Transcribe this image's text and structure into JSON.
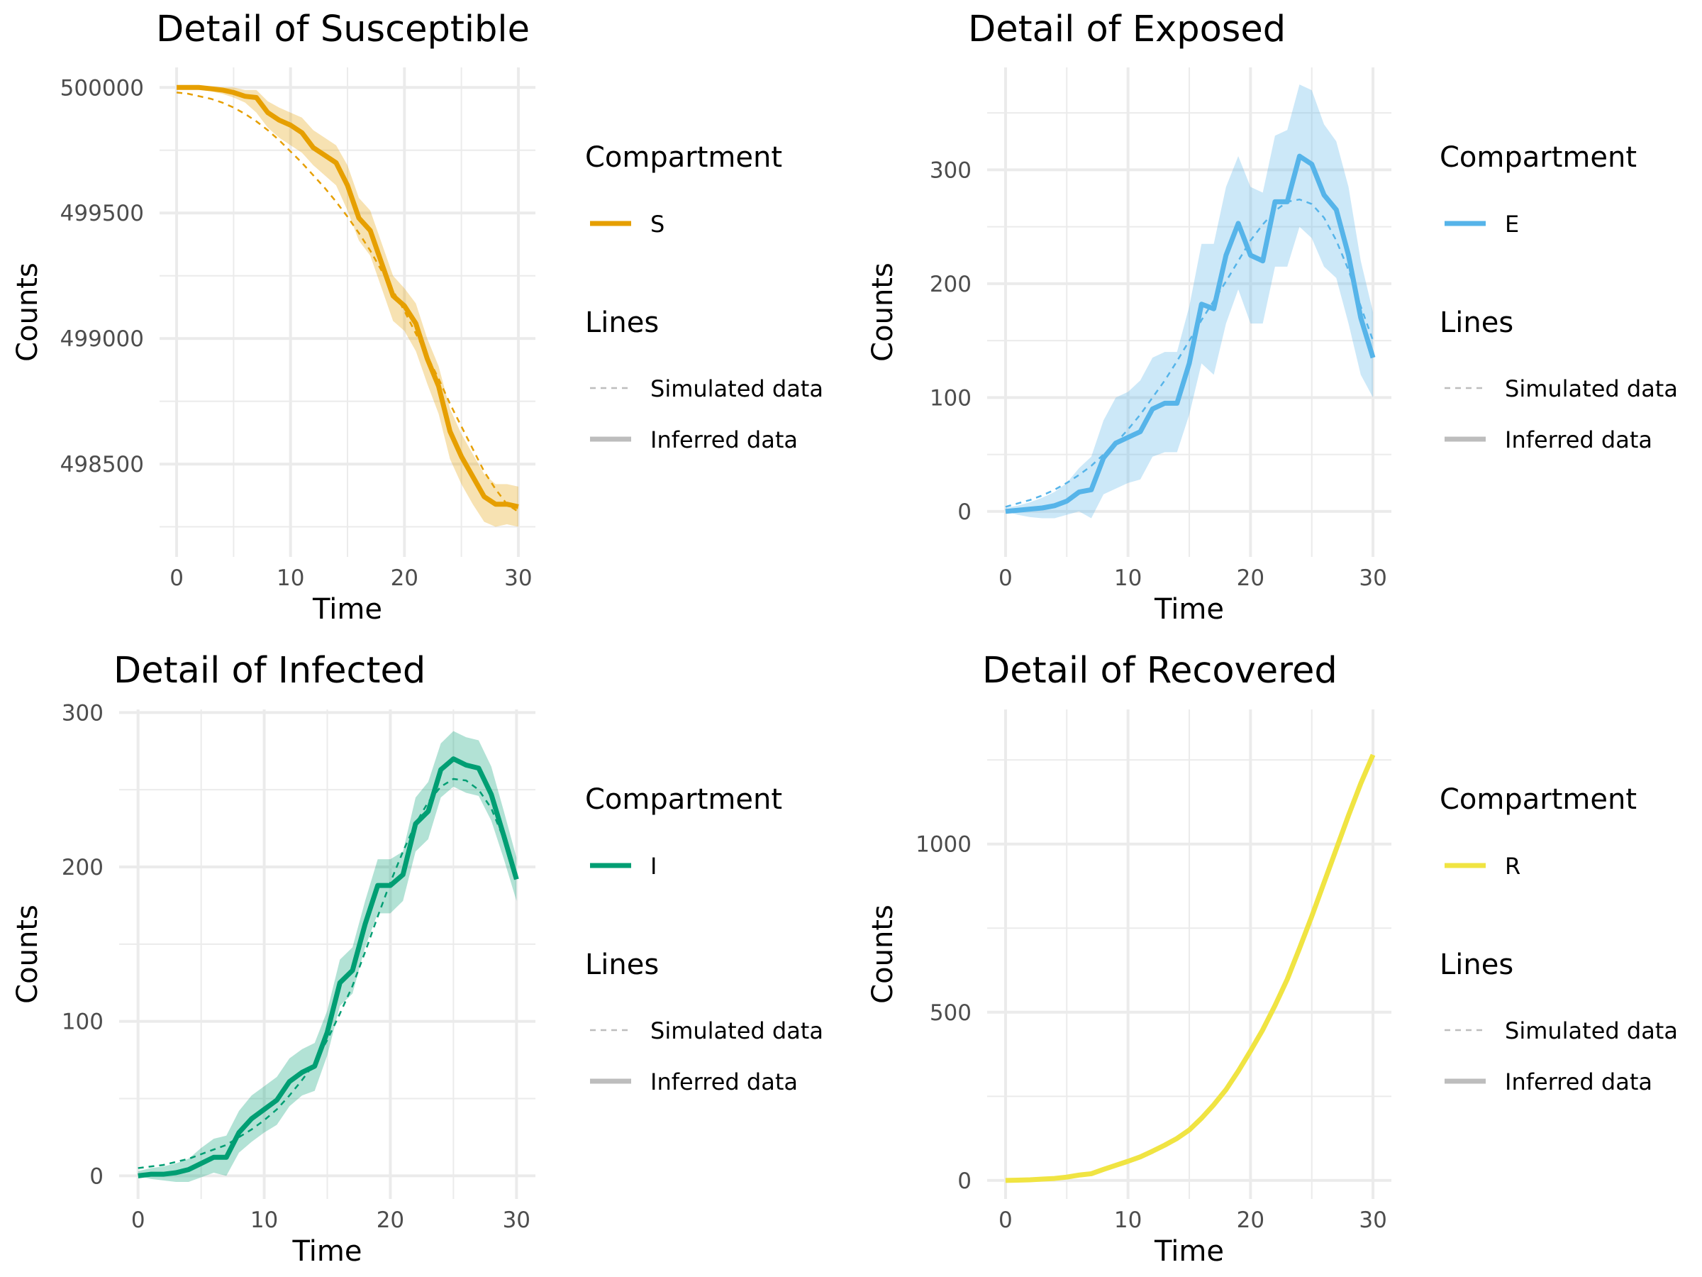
{
  "line_types": {
    "simulated_label": "Simulated data",
    "inferred_label": "Inferred data"
  },
  "chart_data": [
    {
      "type": "line",
      "title": "Detail of Susceptible",
      "xlabel": "Time",
      "ylabel": "Counts",
      "xlim": [
        -1.5,
        31.5
      ],
      "ylim": [
        498130,
        500080
      ],
      "xticks": [
        0,
        10,
        20,
        30
      ],
      "yticks": [
        498500,
        499000,
        499500,
        500000
      ],
      "yminor": [
        498250,
        498750,
        499250,
        499750
      ],
      "xminor": [
        5,
        15,
        25
      ],
      "color": "#E69F00",
      "band_opacity": 0.3,
      "grid": true,
      "legend_position": "right",
      "legend": {
        "compartment_title": "Compartment",
        "compartment_label": "S",
        "lines_title": "Lines"
      },
      "x": [
        0,
        1,
        2,
        3,
        4,
        5,
        6,
        7,
        8,
        9,
        10,
        11,
        12,
        13,
        14,
        15,
        16,
        17,
        18,
        19,
        20,
        21,
        22,
        23,
        24,
        25,
        26,
        27,
        28,
        29,
        30
      ],
      "series": [
        {
          "name": "Inferred data",
          "style": "solid",
          "values": [
            500000,
            500000,
            500000,
            499995,
            499990,
            499980,
            499965,
            499960,
            499900,
            499870,
            499850,
            499820,
            499760,
            499730,
            499700,
            499610,
            499480,
            499430,
            499300,
            499170,
            499130,
            499060,
            498920,
            498810,
            498630,
            498530,
            498450,
            498370,
            498340,
            498340,
            498330
          ],
          "lower": [
            499995,
            499995,
            499990,
            499985,
            499975,
            499960,
            499940,
            499900,
            499840,
            499800,
            499770,
            499740,
            499690,
            499650,
            499610,
            499510,
            499390,
            499330,
            499200,
            499070,
            499030,
            498950,
            498820,
            498700,
            498520,
            498420,
            498340,
            498270,
            498250,
            498260,
            498250
          ],
          "upper": [
            500000,
            500000,
            500000,
            500000,
            500000,
            500000,
            499990,
            499990,
            499945,
            499920,
            499900,
            499880,
            499830,
            499800,
            499770,
            499690,
            499560,
            499510,
            499380,
            499250,
            499200,
            499140,
            499000,
            498890,
            498720,
            498620,
            498540,
            498460,
            498420,
            498420,
            498410
          ]
        },
        {
          "name": "Simulated data",
          "style": "dashed",
          "values": [
            499980,
            499975,
            499965,
            499955,
            499940,
            499920,
            499895,
            499865,
            499830,
            499790,
            499745,
            499700,
            499650,
            499600,
            499545,
            499485,
            499420,
            499350,
            499270,
            499190,
            499110,
            499020,
            498930,
            498840,
            498740,
            498650,
            498560,
            498470,
            498400,
            498340,
            498310
          ]
        }
      ]
    },
    {
      "type": "line",
      "title": "Detail of Exposed",
      "xlabel": "Time",
      "ylabel": "Counts",
      "xlim": [
        -1.5,
        31.5
      ],
      "ylim": [
        -40,
        390
      ],
      "xticks": [
        0,
        10,
        20,
        30
      ],
      "yticks": [
        0,
        100,
        200,
        300
      ],
      "yminor": [
        50,
        150,
        250,
        350
      ],
      "xminor": [
        5,
        15,
        25
      ],
      "color": "#56B4E9",
      "band_opacity": 0.3,
      "grid": true,
      "legend_position": "right",
      "legend": {
        "compartment_title": "Compartment",
        "compartment_label": "E",
        "lines_title": "Lines"
      },
      "x": [
        0,
        1,
        2,
        3,
        4,
        5,
        6,
        7,
        8,
        9,
        10,
        11,
        12,
        13,
        14,
        15,
        16,
        17,
        18,
        19,
        20,
        21,
        22,
        23,
        24,
        25,
        26,
        27,
        28,
        29,
        30
      ],
      "series": [
        {
          "name": "Inferred data",
          "style": "solid",
          "values": [
            0,
            1,
            2,
            3,
            5,
            9,
            17,
            19,
            47,
            60,
            65,
            70,
            90,
            95,
            95,
            130,
            182,
            178,
            225,
            253,
            225,
            220,
            272,
            272,
            312,
            305,
            278,
            265,
            225,
            170,
            135
          ],
          "lower": [
            0,
            -3,
            -5,
            -6,
            -6,
            -3,
            0,
            -6,
            15,
            20,
            25,
            28,
            48,
            52,
            52,
            85,
            130,
            120,
            165,
            195,
            165,
            165,
            215,
            215,
            250,
            240,
            215,
            205,
            165,
            120,
            100
          ],
          "upper": [
            3,
            5,
            8,
            12,
            17,
            25,
            38,
            48,
            80,
            100,
            105,
            115,
            135,
            140,
            140,
            180,
            235,
            235,
            285,
            312,
            285,
            280,
            330,
            335,
            375,
            370,
            340,
            325,
            285,
            220,
            175
          ]
        },
        {
          "name": "Simulated data",
          "style": "dashed",
          "values": [
            4,
            7,
            10,
            14,
            19,
            25,
            32,
            40,
            50,
            60,
            72,
            85,
            100,
            115,
            132,
            150,
            168,
            185,
            202,
            220,
            238,
            252,
            264,
            272,
            274,
            270,
            258,
            238,
            212,
            180,
            150
          ]
        }
      ]
    },
    {
      "type": "line",
      "title": "Detail of Infected",
      "xlabel": "Time",
      "ylabel": "Counts",
      "xlim": [
        -1.5,
        31.5
      ],
      "ylim": [
        -15,
        302
      ],
      "xticks": [
        0,
        10,
        20,
        30
      ],
      "yticks": [
        0,
        100,
        200,
        300
      ],
      "yminor": [
        50,
        150,
        250
      ],
      "xminor": [
        5,
        15,
        25
      ],
      "color": "#009E73",
      "band_opacity": 0.3,
      "grid": true,
      "legend_position": "right",
      "legend": {
        "compartment_title": "Compartment",
        "compartment_label": "I",
        "lines_title": "Lines"
      },
      "x": [
        0,
        1,
        2,
        3,
        4,
        5,
        6,
        7,
        8,
        9,
        10,
        11,
        12,
        13,
        14,
        15,
        16,
        17,
        18,
        19,
        20,
        21,
        22,
        23,
        24,
        25,
        26,
        27,
        28,
        29,
        30
      ],
      "series": [
        {
          "name": "Inferred data",
          "style": "solid",
          "values": [
            0,
            1,
            1,
            2,
            4,
            8,
            12,
            12,
            28,
            37,
            43,
            49,
            61,
            67,
            71,
            93,
            125,
            133,
            163,
            188,
            188,
            195,
            228,
            236,
            263,
            270,
            266,
            264,
            247,
            220,
            192
          ],
          "lower": [
            0,
            -2,
            -3,
            -4,
            -4,
            -1,
            2,
            0,
            15,
            22,
            28,
            33,
            45,
            52,
            55,
            78,
            110,
            118,
            148,
            170,
            170,
            178,
            210,
            218,
            245,
            252,
            248,
            246,
            230,
            205,
            178
          ],
          "upper": [
            3,
            5,
            6,
            8,
            11,
            18,
            24,
            26,
            42,
            52,
            58,
            64,
            76,
            82,
            86,
            107,
            140,
            148,
            178,
            205,
            205,
            210,
            245,
            255,
            280,
            288,
            284,
            282,
            265,
            236,
            206
          ]
        },
        {
          "name": "Simulated data",
          "style": "dashed",
          "values": [
            5,
            6,
            7,
            9,
            11,
            14,
            17,
            20,
            25,
            30,
            36,
            43,
            52,
            62,
            73,
            88,
            105,
            123,
            145,
            168,
            190,
            210,
            228,
            242,
            252,
            257,
            256,
            250,
            238,
            218,
            195
          ]
        }
      ]
    },
    {
      "type": "line",
      "title": "Detail of Recovered",
      "xlabel": "Time",
      "ylabel": "Counts",
      "xlim": [
        -1.5,
        31.5
      ],
      "ylim": [
        -55,
        1400
      ],
      "xticks": [
        0,
        10,
        20,
        30
      ],
      "yticks": [
        0,
        500,
        1000
      ],
      "yminor": [
        250,
        750,
        1250
      ],
      "xminor": [
        5,
        15,
        25
      ],
      "color": "#F0E442",
      "band_opacity": 0.3,
      "grid": true,
      "legend_position": "right",
      "legend": {
        "compartment_title": "Compartment",
        "compartment_label": "R",
        "lines_title": "Lines"
      },
      "x": [
        0,
        1,
        2,
        3,
        4,
        5,
        6,
        7,
        8,
        9,
        10,
        11,
        12,
        13,
        14,
        15,
        16,
        17,
        18,
        19,
        20,
        21,
        22,
        23,
        24,
        25,
        26,
        27,
        28,
        29,
        30
      ],
      "series": [
        {
          "name": "Inferred data",
          "style": "solid",
          "values": [
            0,
            1,
            2,
            4,
            6,
            10,
            16,
            20,
            33,
            45,
            57,
            70,
            87,
            105,
            125,
            150,
            185,
            225,
            270,
            325,
            385,
            448,
            520,
            598,
            690,
            785,
            885,
            985,
            1085,
            1180,
            1265
          ]
        },
        {
          "name": "Simulated data",
          "style": "dashed",
          "values": [
            0,
            1,
            2,
            4,
            6,
            10,
            16,
            20,
            33,
            45,
            57,
            70,
            87,
            105,
            125,
            150,
            185,
            225,
            270,
            325,
            385,
            448,
            520,
            598,
            690,
            785,
            885,
            985,
            1085,
            1180,
            1265
          ]
        }
      ]
    }
  ]
}
